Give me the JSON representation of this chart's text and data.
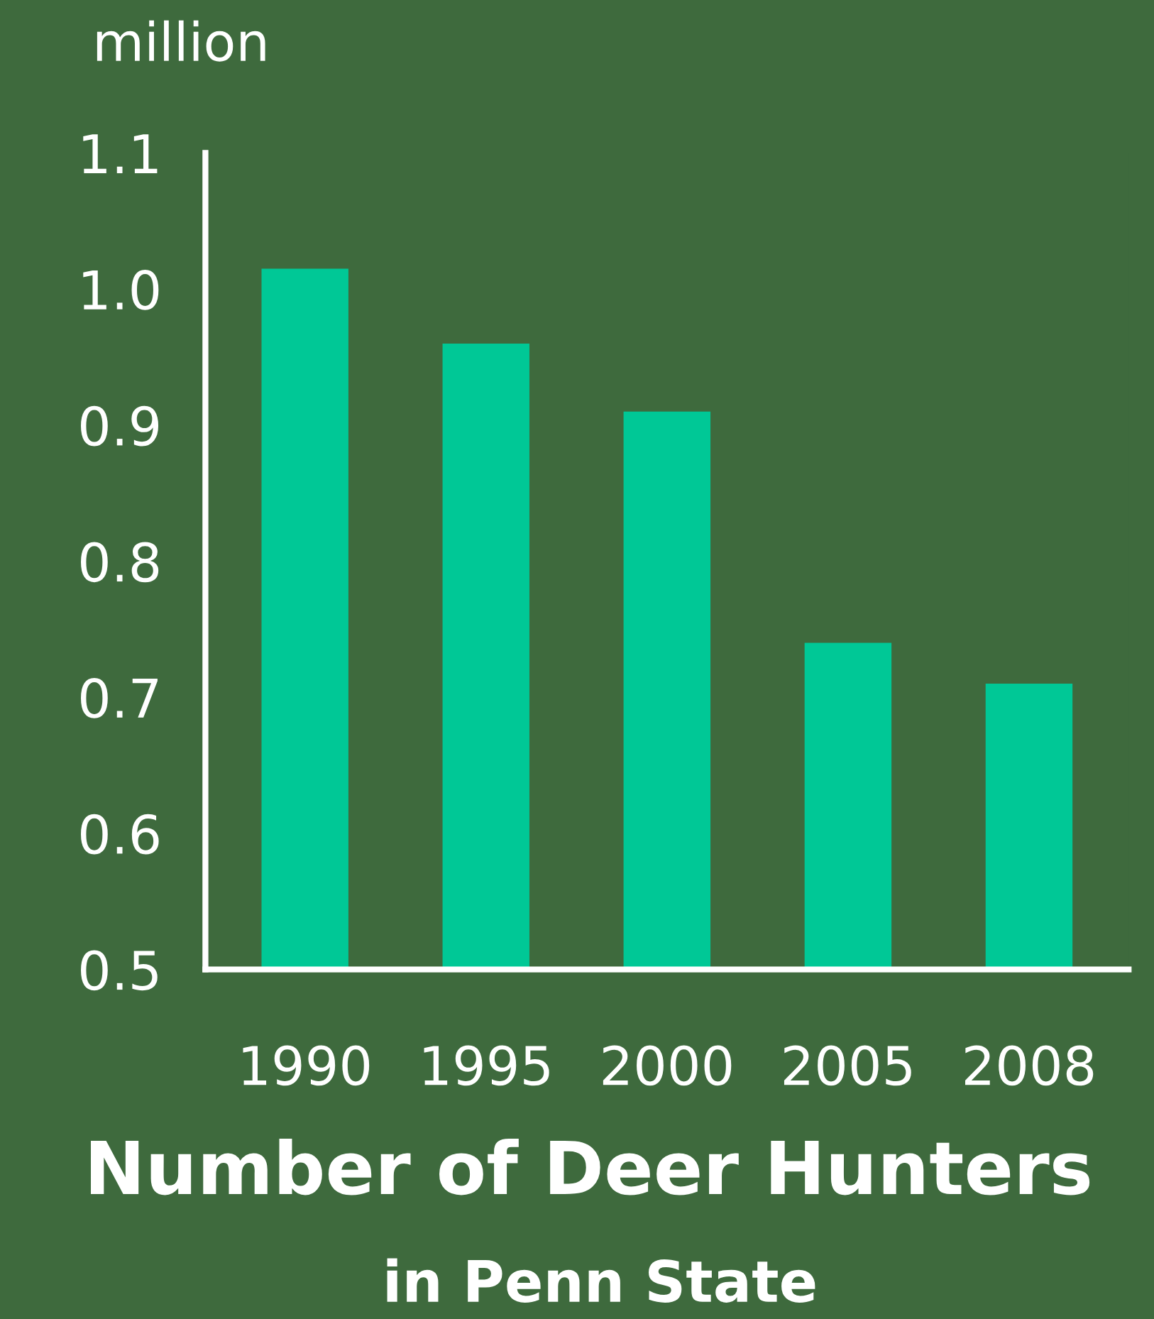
{
  "chart_data": {
    "type": "bar",
    "title": "Number of Deer Hunters",
    "subtitle": "in Penn State",
    "ylabel": "million",
    "categories": [
      "1990",
      "1995",
      "2000",
      "2005",
      "2008"
    ],
    "values": [
      1.015,
      0.96,
      0.91,
      0.74,
      0.71
    ],
    "color": "#00c896",
    "ylim": [
      0.5,
      1.1
    ],
    "yticks": [
      0.5,
      0.6,
      0.7,
      0.8,
      0.9,
      {
        "value": 1.0,
        "label": "1.0"
      },
      1.1
    ],
    "grid": false,
    "legend": false
  }
}
